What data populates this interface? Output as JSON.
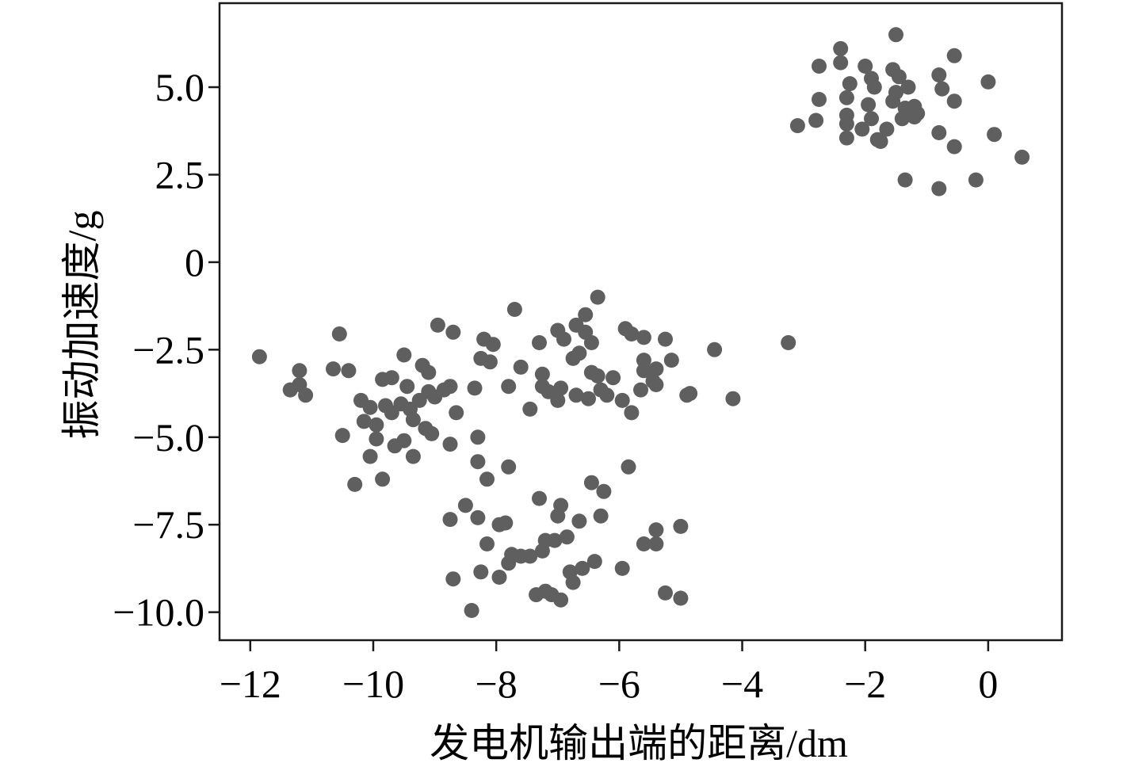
{
  "chart_data": {
    "type": "scatter",
    "xlabel": "发电机输出端的距离/dm",
    "ylabel": "振动加速度/g",
    "xlim": [
      -12.5,
      1.2
    ],
    "ylim": [
      -10.8,
      7.4
    ],
    "xticks": [
      -12,
      -10,
      -8,
      -6,
      -4,
      -2,
      0
    ],
    "xtick_labels": [
      "−12",
      "−10",
      "−8",
      "−6",
      "−4",
      "−2",
      "0"
    ],
    "yticks": [
      5.0,
      2.5,
      0,
      -2.5,
      -5.0,
      -7.5,
      -10.0
    ],
    "ytick_labels": [
      "5.0",
      "2.5",
      "0",
      "−2.5",
      "−5.0",
      "−7.5",
      "−10.0"
    ],
    "grid": false,
    "marker_color": "#5f5f5f",
    "series": [
      {
        "points": [
          [
            -2.4,
            6.1
          ],
          [
            -1.5,
            6.5
          ],
          [
            -2.75,
            5.6
          ],
          [
            -2.4,
            5.7
          ],
          [
            -2.0,
            5.6
          ],
          [
            -0.55,
            5.9
          ],
          [
            -0.8,
            5.35
          ],
          [
            0.0,
            5.15
          ],
          [
            -2.25,
            5.1
          ],
          [
            -1.9,
            5.25
          ],
          [
            -1.85,
            5.0
          ],
          [
            -1.55,
            5.5
          ],
          [
            -1.45,
            5.3
          ],
          [
            -1.3,
            5.0
          ],
          [
            -1.5,
            4.85
          ],
          [
            -0.75,
            4.95
          ],
          [
            -2.75,
            4.65
          ],
          [
            -2.3,
            4.7
          ],
          [
            -1.95,
            4.5
          ],
          [
            -1.55,
            4.6
          ],
          [
            -1.35,
            4.4
          ],
          [
            -1.2,
            4.45
          ],
          [
            -0.55,
            4.6
          ],
          [
            -2.8,
            4.05
          ],
          [
            -2.3,
            4.2
          ],
          [
            -1.9,
            4.1
          ],
          [
            -1.4,
            4.1
          ],
          [
            -1.15,
            4.25
          ],
          [
            -1.2,
            4.15
          ],
          [
            -3.1,
            3.9
          ],
          [
            -2.3,
            3.95
          ],
          [
            -2.05,
            3.8
          ],
          [
            -1.65,
            3.8
          ],
          [
            -0.8,
            3.7
          ],
          [
            0.1,
            3.65
          ],
          [
            -2.3,
            3.55
          ],
          [
            -1.8,
            3.5
          ],
          [
            -1.75,
            3.45
          ],
          [
            -0.55,
            3.3
          ],
          [
            0.55,
            3.0
          ],
          [
            -1.35,
            2.35
          ],
          [
            -0.8,
            2.1
          ],
          [
            -0.2,
            2.35
          ],
          [
            -6.35,
            -1.0
          ],
          [
            -7.7,
            -1.35
          ],
          [
            -6.55,
            -1.5
          ],
          [
            -8.95,
            -1.8
          ],
          [
            -10.55,
            -2.05
          ],
          [
            -8.7,
            -2.0
          ],
          [
            -6.7,
            -1.8
          ],
          [
            -6.55,
            -2.0
          ],
          [
            -7.0,
            -1.95
          ],
          [
            -5.9,
            -1.9
          ],
          [
            -5.8,
            -2.05
          ],
          [
            -5.6,
            -2.15
          ],
          [
            -5.25,
            -2.2
          ],
          [
            -8.2,
            -2.2
          ],
          [
            -8.05,
            -2.35
          ],
          [
            -7.3,
            -2.3
          ],
          [
            -6.9,
            -2.2
          ],
          [
            -6.45,
            -2.3
          ],
          [
            -3.25,
            -2.3
          ],
          [
            -4.45,
            -2.5
          ],
          [
            -11.85,
            -2.7
          ],
          [
            -9.5,
            -2.65
          ],
          [
            -8.25,
            -2.75
          ],
          [
            -8.1,
            -2.85
          ],
          [
            -6.65,
            -2.6
          ],
          [
            -6.75,
            -2.75
          ],
          [
            -5.6,
            -2.8
          ],
          [
            -5.15,
            -2.8
          ],
          [
            -7.6,
            -3.0
          ],
          [
            -6.45,
            -3.15
          ],
          [
            -6.35,
            -3.25
          ],
          [
            -6.1,
            -3.3
          ],
          [
            -5.6,
            -3.1
          ],
          [
            -5.4,
            -3.05
          ],
          [
            -7.25,
            -3.2
          ],
          [
            -11.2,
            -3.1
          ],
          [
            -10.65,
            -3.05
          ],
          [
            -10.4,
            -3.1
          ],
          [
            -9.85,
            -3.35
          ],
          [
            -9.7,
            -3.3
          ],
          [
            -9.2,
            -2.95
          ],
          [
            -9.1,
            -3.15
          ],
          [
            -9.45,
            -3.55
          ],
          [
            -9.1,
            -3.7
          ],
          [
            -8.85,
            -3.65
          ],
          [
            -8.75,
            -3.55
          ],
          [
            -8.35,
            -3.6
          ],
          [
            -7.8,
            -3.55
          ],
          [
            -7.25,
            -3.55
          ],
          [
            -7.15,
            -3.7
          ],
          [
            -6.95,
            -3.6
          ],
          [
            -6.7,
            -3.8
          ],
          [
            -6.5,
            -3.9
          ],
          [
            -6.3,
            -3.65
          ],
          [
            -6.2,
            -3.8
          ],
          [
            -5.95,
            -3.95
          ],
          [
            -5.65,
            -3.65
          ],
          [
            -5.45,
            -3.4
          ],
          [
            -5.4,
            -3.5
          ],
          [
            -4.85,
            -3.75
          ],
          [
            -4.9,
            -3.8
          ],
          [
            -4.15,
            -3.9
          ],
          [
            -11.2,
            -3.5
          ],
          [
            -11.35,
            -3.65
          ],
          [
            -11.1,
            -3.8
          ],
          [
            -10.2,
            -3.95
          ],
          [
            -10.05,
            -4.15
          ],
          [
            -9.8,
            -4.1
          ],
          [
            -9.7,
            -4.3
          ],
          [
            -9.55,
            -4.05
          ],
          [
            -9.4,
            -4.2
          ],
          [
            -9.25,
            -3.95
          ],
          [
            -9.0,
            -3.85
          ],
          [
            -7.45,
            -4.2
          ],
          [
            -7.0,
            -3.95
          ],
          [
            -5.8,
            -4.3
          ],
          [
            -8.65,
            -4.3
          ],
          [
            -10.15,
            -4.55
          ],
          [
            -9.95,
            -4.65
          ],
          [
            -9.35,
            -4.5
          ],
          [
            -9.15,
            -4.75
          ],
          [
            -9.05,
            -4.9
          ],
          [
            -10.5,
            -4.95
          ],
          [
            -9.95,
            -5.05
          ],
          [
            -9.5,
            -5.1
          ],
          [
            -9.65,
            -5.25
          ],
          [
            -8.75,
            -5.2
          ],
          [
            -8.3,
            -5.0
          ],
          [
            -10.05,
            -5.55
          ],
          [
            -9.35,
            -5.55
          ],
          [
            -8.3,
            -5.7
          ],
          [
            -7.8,
            -5.85
          ],
          [
            -5.85,
            -5.85
          ],
          [
            -10.3,
            -6.35
          ],
          [
            -9.85,
            -6.2
          ],
          [
            -8.15,
            -6.2
          ],
          [
            -6.45,
            -6.3
          ],
          [
            -6.25,
            -6.55
          ],
          [
            -7.3,
            -6.75
          ],
          [
            -6.95,
            -6.95
          ],
          [
            -8.5,
            -6.95
          ],
          [
            -8.75,
            -7.35
          ],
          [
            -8.3,
            -7.3
          ],
          [
            -7.95,
            -7.5
          ],
          [
            -7.85,
            -7.45
          ],
          [
            -7.0,
            -7.25
          ],
          [
            -6.65,
            -7.4
          ],
          [
            -6.3,
            -7.25
          ],
          [
            -5.4,
            -7.65
          ],
          [
            -5.0,
            -7.55
          ],
          [
            -8.15,
            -8.05
          ],
          [
            -7.2,
            -7.95
          ],
          [
            -7.05,
            -7.95
          ],
          [
            -6.85,
            -7.85
          ],
          [
            -5.6,
            -8.05
          ],
          [
            -5.4,
            -8.05
          ],
          [
            -7.75,
            -8.35
          ],
          [
            -7.6,
            -8.4
          ],
          [
            -7.45,
            -8.4
          ],
          [
            -7.25,
            -8.25
          ],
          [
            -6.4,
            -8.55
          ],
          [
            -6.6,
            -8.75
          ],
          [
            -6.8,
            -8.85
          ],
          [
            -5.95,
            -8.75
          ],
          [
            -8.25,
            -8.85
          ],
          [
            -7.8,
            -8.6
          ],
          [
            -7.95,
            -9.0
          ],
          [
            -8.7,
            -9.05
          ],
          [
            -6.75,
            -9.15
          ],
          [
            -7.35,
            -9.5
          ],
          [
            -7.1,
            -9.5
          ],
          [
            -6.95,
            -9.65
          ],
          [
            -5.25,
            -9.45
          ],
          [
            -5.0,
            -9.6
          ],
          [
            -8.4,
            -9.95
          ],
          [
            -7.2,
            -9.4
          ]
        ]
      }
    ]
  }
}
